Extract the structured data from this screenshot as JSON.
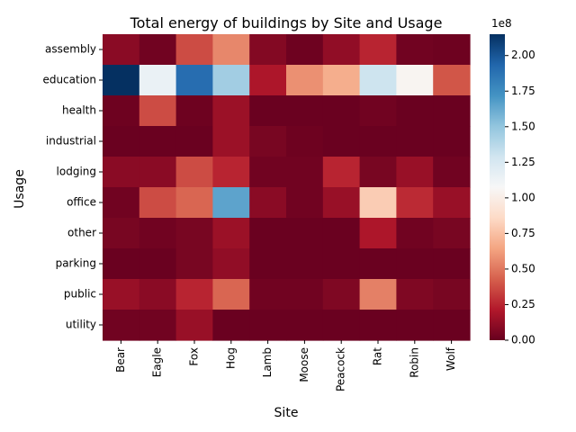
{
  "chart_data": {
    "type": "heatmap",
    "title": "Total energy of buildings by Site and Usage",
    "xlabel": "Site",
    "ylabel": "Usage",
    "x": [
      "Bear",
      "Eagle",
      "Fox",
      "Hog",
      "Lamb",
      "Moose",
      "Peacock",
      "Rat",
      "Robin",
      "Wolf"
    ],
    "y": [
      "assembly",
      "education",
      "health",
      "industrial",
      "lodging",
      "office",
      "other",
      "parking",
      "public",
      "utility"
    ],
    "values": [
      [
        10000000,
        3000000,
        37000000,
        55000000,
        8000000,
        2000000,
        12000000,
        25000000,
        3000000,
        2000000
      ],
      [
        215000000,
        115000000,
        190000000,
        145000000,
        20000000,
        58000000,
        68000000,
        130000000,
        105000000,
        40000000
      ],
      [
        2000000,
        37000000,
        2000000,
        15000000,
        1000000,
        1000000,
        1000000,
        3000000,
        1000000,
        1000000
      ],
      [
        1000000,
        1000000,
        1000000,
        15000000,
        5000000,
        2000000,
        1000000,
        1000000,
        1000000,
        1000000
      ],
      [
        10000000,
        10000000,
        37000000,
        25000000,
        3000000,
        3000000,
        25000000,
        5000000,
        14000000,
        3000000
      ],
      [
        3000000,
        37000000,
        45000000,
        165000000,
        10000000,
        3000000,
        14000000,
        80000000,
        27000000,
        14000000
      ],
      [
        5000000,
        3000000,
        5000000,
        15000000,
        1000000,
        1000000,
        1000000,
        20000000,
        3000000,
        5000000
      ],
      [
        1000000,
        1000000,
        5000000,
        12000000,
        1000000,
        1000000,
        1000000,
        1000000,
        1000000,
        1000000
      ],
      [
        14000000,
        10000000,
        25000000,
        45000000,
        3000000,
        3000000,
        7000000,
        53000000,
        7000000,
        5000000
      ],
      [
        3000000,
        3000000,
        14000000,
        1000000,
        1000000,
        1000000,
        1000000,
        1000000,
        1000000,
        1000000
      ]
    ],
    "colormap": "RdBu",
    "vmin": 0,
    "vmax": 215000000,
    "colorbar": {
      "ticks": [
        0,
        25000000,
        50000000,
        75000000,
        100000000,
        125000000,
        150000000,
        175000000,
        200000000
      ],
      "tick_labels": [
        "0.00",
        "0.25",
        "0.50",
        "0.75",
        "1.00",
        "1.25",
        "1.50",
        "1.75",
        "2.00"
      ],
      "offset_label": "1e8"
    },
    "grid": false
  }
}
